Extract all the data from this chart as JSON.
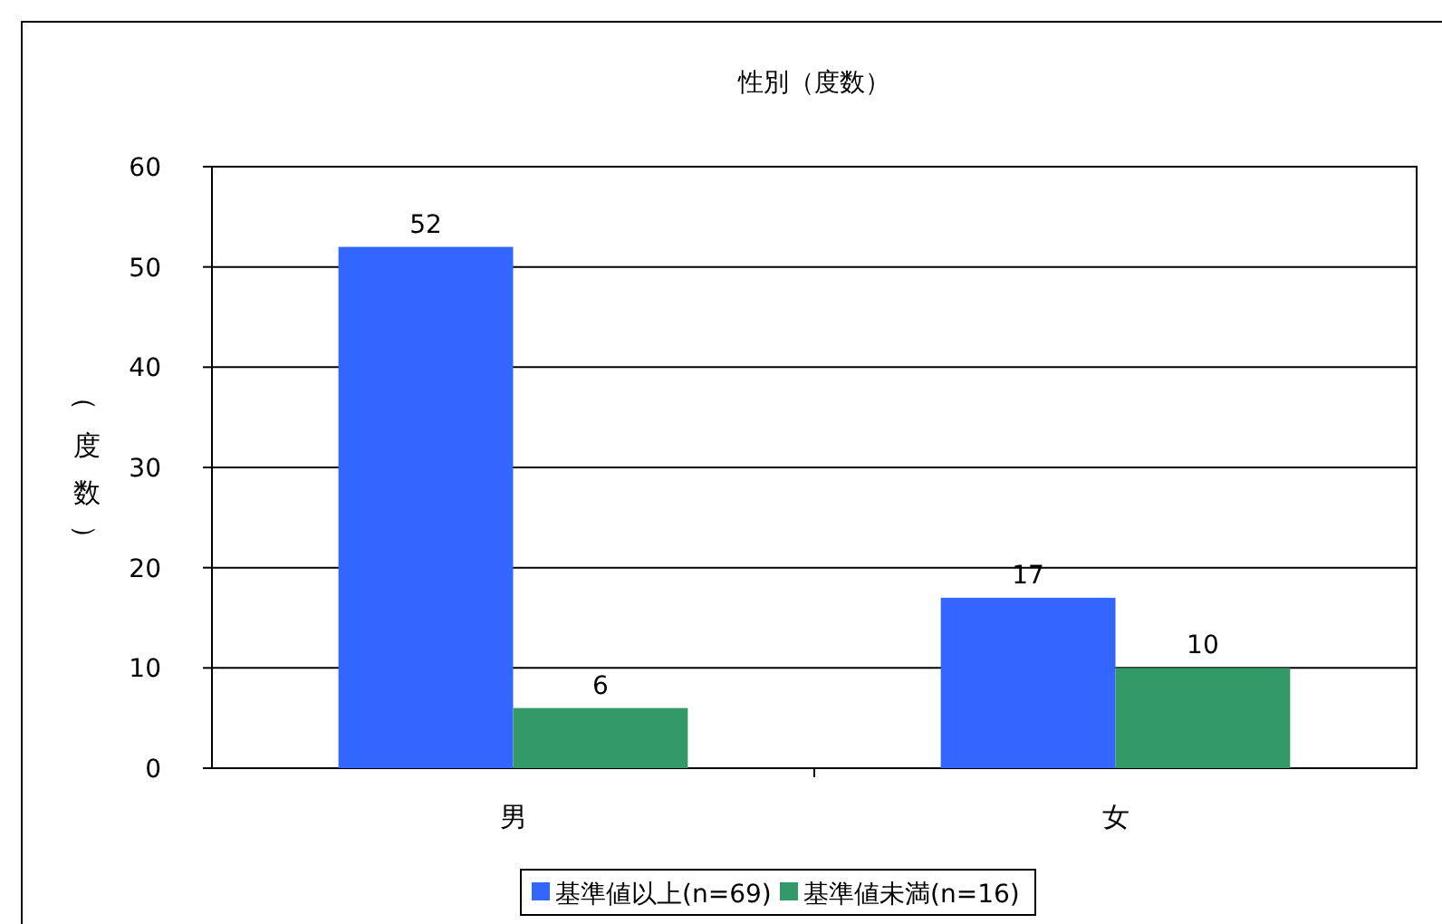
{
  "chart_data": {
    "type": "bar",
    "title": "性別（度数）",
    "ylabel": "（度数）",
    "categories": [
      "男",
      "女"
    ],
    "series": [
      {
        "name": "基準値以上(n=69)",
        "color": "#3366ff",
        "values": [
          52,
          17
        ]
      },
      {
        "name": "基準値未満(n=16)",
        "color": "#339966",
        "values": [
          6,
          10
        ]
      }
    ],
    "ylim": [
      0,
      60
    ],
    "yticks": [
      0,
      10,
      20,
      30,
      40,
      50,
      60
    ],
    "grid": "y",
    "legend": "bottom",
    "data_labels": true
  }
}
